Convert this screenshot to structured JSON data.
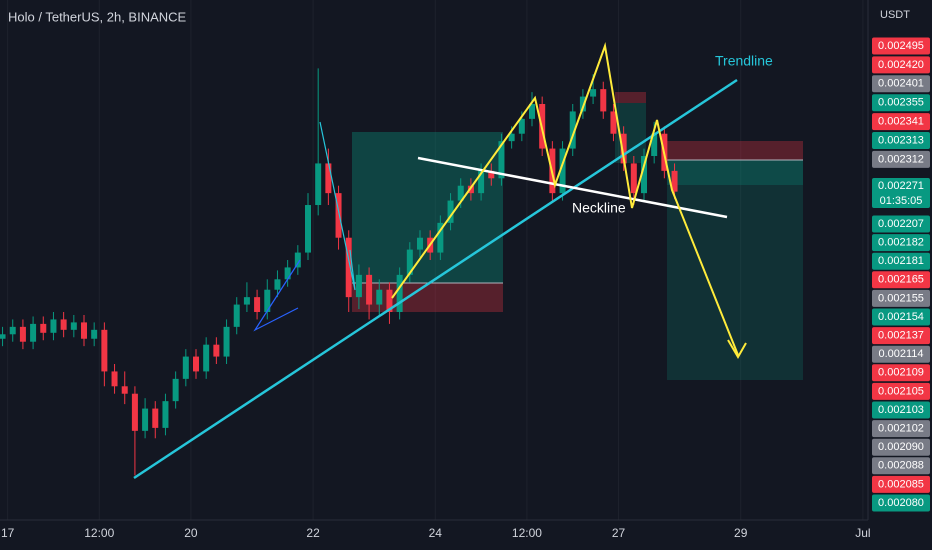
{
  "chart_data": {
    "type": "candlestick",
    "title": "Holo / TetherUS, 2h, BINANCE",
    "axis_unit": "USDT",
    "up_color": "#089981",
    "down_color": "#f23645",
    "x": [
      -2,
      2,
      6,
      10,
      14,
      18,
      22,
      26,
      30,
      34,
      38,
      42,
      46,
      50,
      54,
      58,
      62,
      66,
      70,
      74,
      78,
      82,
      86,
      90,
      94,
      98,
      102,
      106,
      110,
      114,
      118,
      122,
      126,
      130,
      134,
      138,
      142,
      146,
      150,
      154,
      158,
      162,
      166,
      170,
      174,
      178,
      182,
      186,
      190,
      194,
      198,
      202,
      206,
      210,
      214,
      218,
      222,
      226,
      230,
      234,
      238,
      242,
      246,
      250,
      254,
      258,
      262
    ],
    "open": [
      0.002172,
      0.002175,
      0.00218,
      0.00217,
      0.002182,
      0.002176,
      0.002185,
      0.002178,
      0.002183,
      0.002172,
      0.002178,
      0.00215,
      0.00214,
      0.002135,
      0.00211,
      0.002125,
      0.002112,
      0.00213,
      0.002145,
      0.00216,
      0.00215,
      0.002168,
      0.00216,
      0.00218,
      0.002195,
      0.0022,
      0.00219,
      0.002205,
      0.002212,
      0.00222,
      0.00223,
      0.002262,
      0.00229,
      0.00227,
      0.00224,
      0.0022,
      0.002215,
      0.002195,
      0.002205,
      0.00219,
      0.002215,
      0.002232,
      0.00224,
      0.00223,
      0.00225,
      0.002265,
      0.002275,
      0.00227,
      0.002285,
      0.00228,
      0.002305,
      0.00231,
      0.00232,
      0.00233,
      0.0023,
      0.00227,
      0.0023,
      0.002325,
      0.002335,
      0.00234,
      0.002325,
      0.00231,
      0.00229,
      0.00227,
      0.002295,
      0.00231,
      0.002285
    ],
    "high": [
      0.00218,
      0.002185,
      0.002185,
      0.002187,
      0.002187,
      0.00219,
      0.00219,
      0.002188,
      0.002188,
      0.002183,
      0.002183,
      0.002155,
      0.00215,
      0.00214,
      0.002132,
      0.00213,
      0.002135,
      0.00215,
      0.002165,
      0.002165,
      0.002173,
      0.002173,
      0.002185,
      0.0022,
      0.00221,
      0.002205,
      0.002212,
      0.002218,
      0.002225,
      0.002235,
      0.00227,
      0.002354,
      0.0023,
      0.002275,
      0.002245,
      0.002222,
      0.00222,
      0.002212,
      0.00221,
      0.00222,
      0.002237,
      0.002245,
      0.002245,
      0.002255,
      0.00227,
      0.00228,
      0.00228,
      0.00229,
      0.00229,
      0.00231,
      0.002315,
      0.002325,
      0.002338,
      0.002335,
      0.002305,
      0.002305,
      0.00233,
      0.00234,
      0.00235,
      0.002345,
      0.00233,
      0.002315,
      0.002295,
      0.0023,
      0.002318,
      0.002315,
      0.00229
    ],
    "low": [
      0.002167,
      0.00217,
      0.002165,
      0.002165,
      0.002171,
      0.002171,
      0.002173,
      0.002173,
      0.002167,
      0.002167,
      0.00214,
      0.002135,
      0.002128,
      0.00208,
      0.002105,
      0.002105,
      0.002107,
      0.002125,
      0.00214,
      0.002145,
      0.002145,
      0.002155,
      0.002155,
      0.002175,
      0.00219,
      0.002185,
      0.002185,
      0.0022,
      0.002207,
      0.002215,
      0.002225,
      0.002255,
      0.002262,
      0.002232,
      0.00219,
      0.002192,
      0.002185,
      0.002188,
      0.002182,
      0.002185,
      0.00221,
      0.002227,
      0.002225,
      0.002225,
      0.002245,
      0.00226,
      0.002265,
      0.002265,
      0.002275,
      0.002275,
      0.0023,
      0.002305,
      0.002315,
      0.002295,
      0.002265,
      0.002265,
      0.002295,
      0.00232,
      0.00233,
      0.00232,
      0.002305,
      0.002285,
      0.002262,
      0.002265,
      0.00229,
      0.00228,
      0.002266
    ],
    "close": [
      0.002175,
      0.00218,
      0.00217,
      0.002182,
      0.002176,
      0.002185,
      0.002178,
      0.002183,
      0.002172,
      0.002178,
      0.00215,
      0.00214,
      0.002135,
      0.00211,
      0.002125,
      0.002112,
      0.00213,
      0.002145,
      0.00216,
      0.00215,
      0.002168,
      0.00216,
      0.00218,
      0.002195,
      0.0022,
      0.00219,
      0.002205,
      0.002212,
      0.00222,
      0.00223,
      0.002262,
      0.00229,
      0.00227,
      0.00224,
      0.0022,
      0.002215,
      0.002195,
      0.002205,
      0.00219,
      0.002215,
      0.002232,
      0.00224,
      0.00223,
      0.00225,
      0.002265,
      0.002275,
      0.00227,
      0.002285,
      0.00228,
      0.002305,
      0.00231,
      0.00232,
      0.00233,
      0.0023,
      0.00227,
      0.0023,
      0.002325,
      0.002335,
      0.00234,
      0.002325,
      0.00231,
      0.00229,
      0.00227,
      0.002295,
      0.00231,
      0.002285,
      0.002271
    ],
    "xlim": [
      -3,
      338
    ],
    "xticks": [
      {
        "value": 0,
        "label": "17"
      },
      {
        "value": 36,
        "label": "12:00"
      },
      {
        "value": 72,
        "label": "20"
      },
      {
        "value": 120,
        "label": "22"
      },
      {
        "value": 168,
        "label": "24"
      },
      {
        "value": 204,
        "label": "12:00"
      },
      {
        "value": 240,
        "label": "27"
      },
      {
        "value": 288,
        "label": "29"
      },
      {
        "value": 336,
        "label": "Jul"
      }
    ],
    "ylim": [
      0.00205,
      0.0024
    ],
    "grid": true,
    "annotations": {
      "trendline": "Trendline",
      "neckline": "Neckline"
    },
    "countdown": "01:35:05",
    "price_labels": [
      {
        "label": "0.002495",
        "color": "#f23645"
      },
      {
        "label": "0.002420",
        "color": "#f23645"
      },
      {
        "label": "0.002401",
        "color": "#787b86"
      },
      {
        "label": "0.002355",
        "color": "#089981"
      },
      {
        "label": "0.002341",
        "color": "#f23645"
      },
      {
        "label": "0.002313",
        "color": "#089981"
      },
      {
        "label": "0.002312",
        "color": "#787b86"
      },
      {
        "label": "0.002271",
        "color": "#089981"
      },
      {
        "label": "0.002207",
        "color": "#089981"
      },
      {
        "label": "0.002182",
        "color": "#089981"
      },
      {
        "label": "0.002181",
        "color": "#089981"
      },
      {
        "label": "0.002165",
        "color": "#f23645"
      },
      {
        "label": "0.002155",
        "color": "#787b86"
      },
      {
        "label": "0.002154",
        "color": "#089981"
      },
      {
        "label": "0.002137",
        "color": "#f23645"
      },
      {
        "label": "0.002114",
        "color": "#787b86"
      },
      {
        "label": "0.002109",
        "color": "#f23645"
      },
      {
        "label": "0.002105",
        "color": "#f23645"
      },
      {
        "label": "0.002103",
        "color": "#089981"
      },
      {
        "label": "0.002102",
        "color": "#787b86"
      },
      {
        "label": "0.002090",
        "color": "#787b86"
      },
      {
        "label": "0.002088",
        "color": "#787b86"
      },
      {
        "label": "0.002085",
        "color": "#f23645"
      },
      {
        "label": "0.002080",
        "color": "#089981"
      }
    ]
  }
}
